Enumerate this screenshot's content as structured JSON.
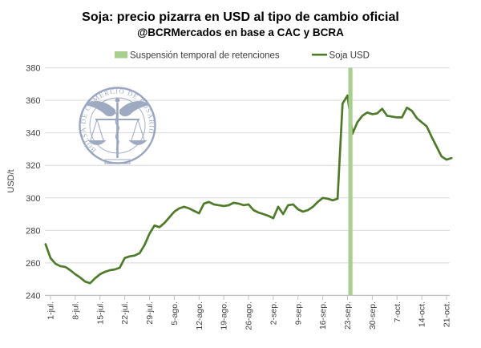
{
  "title": "Soja: precio pizarra en USD al tipo de cambio oficial",
  "subtitle": "@BCRMercados en base a CAC y BCRA",
  "watermark": {
    "seal_text": "BOLSA DE COMERCIO DE ROSARIO"
  },
  "legend": {
    "band": {
      "label": "Suspensión temporal de retenciones",
      "color": "#a9cf8e"
    },
    "line": {
      "label": "Soja USD",
      "color": "#4e7b2a"
    }
  },
  "chart_data": {
    "type": "line",
    "title": "Soja: precio pizarra en USD al tipo de cambio oficial",
    "subtitle": "@BCRMercados en base a CAC y BCRA",
    "series_name": "Soja USD",
    "xlabel": "",
    "ylabel": "USD/t",
    "ylim": [
      240,
      380
    ],
    "ytick_step": 20,
    "grid": true,
    "legend_position": "top",
    "line_color": "#4e7b2a",
    "band_color": "#a9cf8e",
    "gridline_color": "#d9d9d9",
    "axis_line_color": "#bfbfbf",
    "axis_text_color": "#404040",
    "band": {
      "label": "Suspensión temporal de retenciones",
      "start_date": "23-sep",
      "end_date": "24-sep"
    },
    "xtick_labels": [
      "1-jul.",
      "8-jul.",
      "15-jul.",
      "22-jul.",
      "29-jul.",
      "5-ago.",
      "12-ago.",
      "19-ago.",
      "26-ago.",
      "2-sep.",
      "9-sep.",
      "16-sep.",
      "23-sep.",
      "30-sep.",
      "7-oct.",
      "14-oct.",
      "21-oct."
    ],
    "dates": [
      "30-jun",
      "1-jul",
      "2-jul",
      "3-jul",
      "4-jul",
      "7-jul",
      "8-jul",
      "9-jul",
      "10-jul",
      "11-jul",
      "14-jul",
      "15-jul",
      "16-jul",
      "17-jul",
      "18-jul",
      "21-jul",
      "22-jul",
      "23-jul",
      "24-jul",
      "25-jul",
      "28-jul",
      "29-jul",
      "30-jul",
      "31-jul",
      "1-ago",
      "4-ago",
      "5-ago",
      "6-ago",
      "7-ago",
      "8-ago",
      "11-ago",
      "12-ago",
      "13-ago",
      "14-ago",
      "15-ago",
      "18-ago",
      "19-ago",
      "20-ago",
      "21-ago",
      "22-ago",
      "25-ago",
      "26-ago",
      "27-ago",
      "28-ago",
      "29-ago",
      "1-sep",
      "2-sep",
      "3-sep",
      "4-sep",
      "5-sep",
      "8-sep",
      "9-sep",
      "10-sep",
      "11-sep",
      "12-sep",
      "15-sep",
      "16-sep",
      "17-sep",
      "18-sep",
      "19-sep",
      "22-sep",
      "23-sep",
      "24-sep",
      "25-sep",
      "26-sep",
      "29-sep",
      "30-sep",
      "1-oct",
      "2-oct",
      "3-oct",
      "6-oct",
      "7-oct",
      "8-oct",
      "9-oct",
      "10-oct",
      "13-oct",
      "14-oct",
      "15-oct",
      "16-oct",
      "17-oct",
      "20-oct",
      "21-oct",
      "22-oct"
    ],
    "values": [
      271.5,
      263,
      259.5,
      258,
      257.5,
      255.5,
      253,
      251,
      248.5,
      247.5,
      250.5,
      253,
      254.5,
      255.5,
      256,
      257,
      263,
      264,
      264.5,
      266,
      271,
      278,
      283,
      282,
      284.5,
      288,
      291.5,
      293.5,
      294.5,
      293.5,
      292,
      290.5,
      296.5,
      297.5,
      296,
      295.5,
      295,
      295.5,
      297,
      296.5,
      295.5,
      296,
      292.5,
      291,
      290,
      289,
      287.5,
      294.5,
      290,
      295.5,
      296,
      293,
      291.5,
      292.5,
      294.5,
      297.5,
      300,
      299.5,
      298.5,
      299.5,
      358,
      363,
      339.5,
      346.5,
      350.5,
      352.5,
      351.5,
      352,
      354.8,
      350.5,
      350,
      349.5,
      349.5,
      355.5,
      353.5,
      349,
      346.5,
      344,
      337.5,
      331.5,
      325.5,
      323.5,
      324.5
    ]
  }
}
